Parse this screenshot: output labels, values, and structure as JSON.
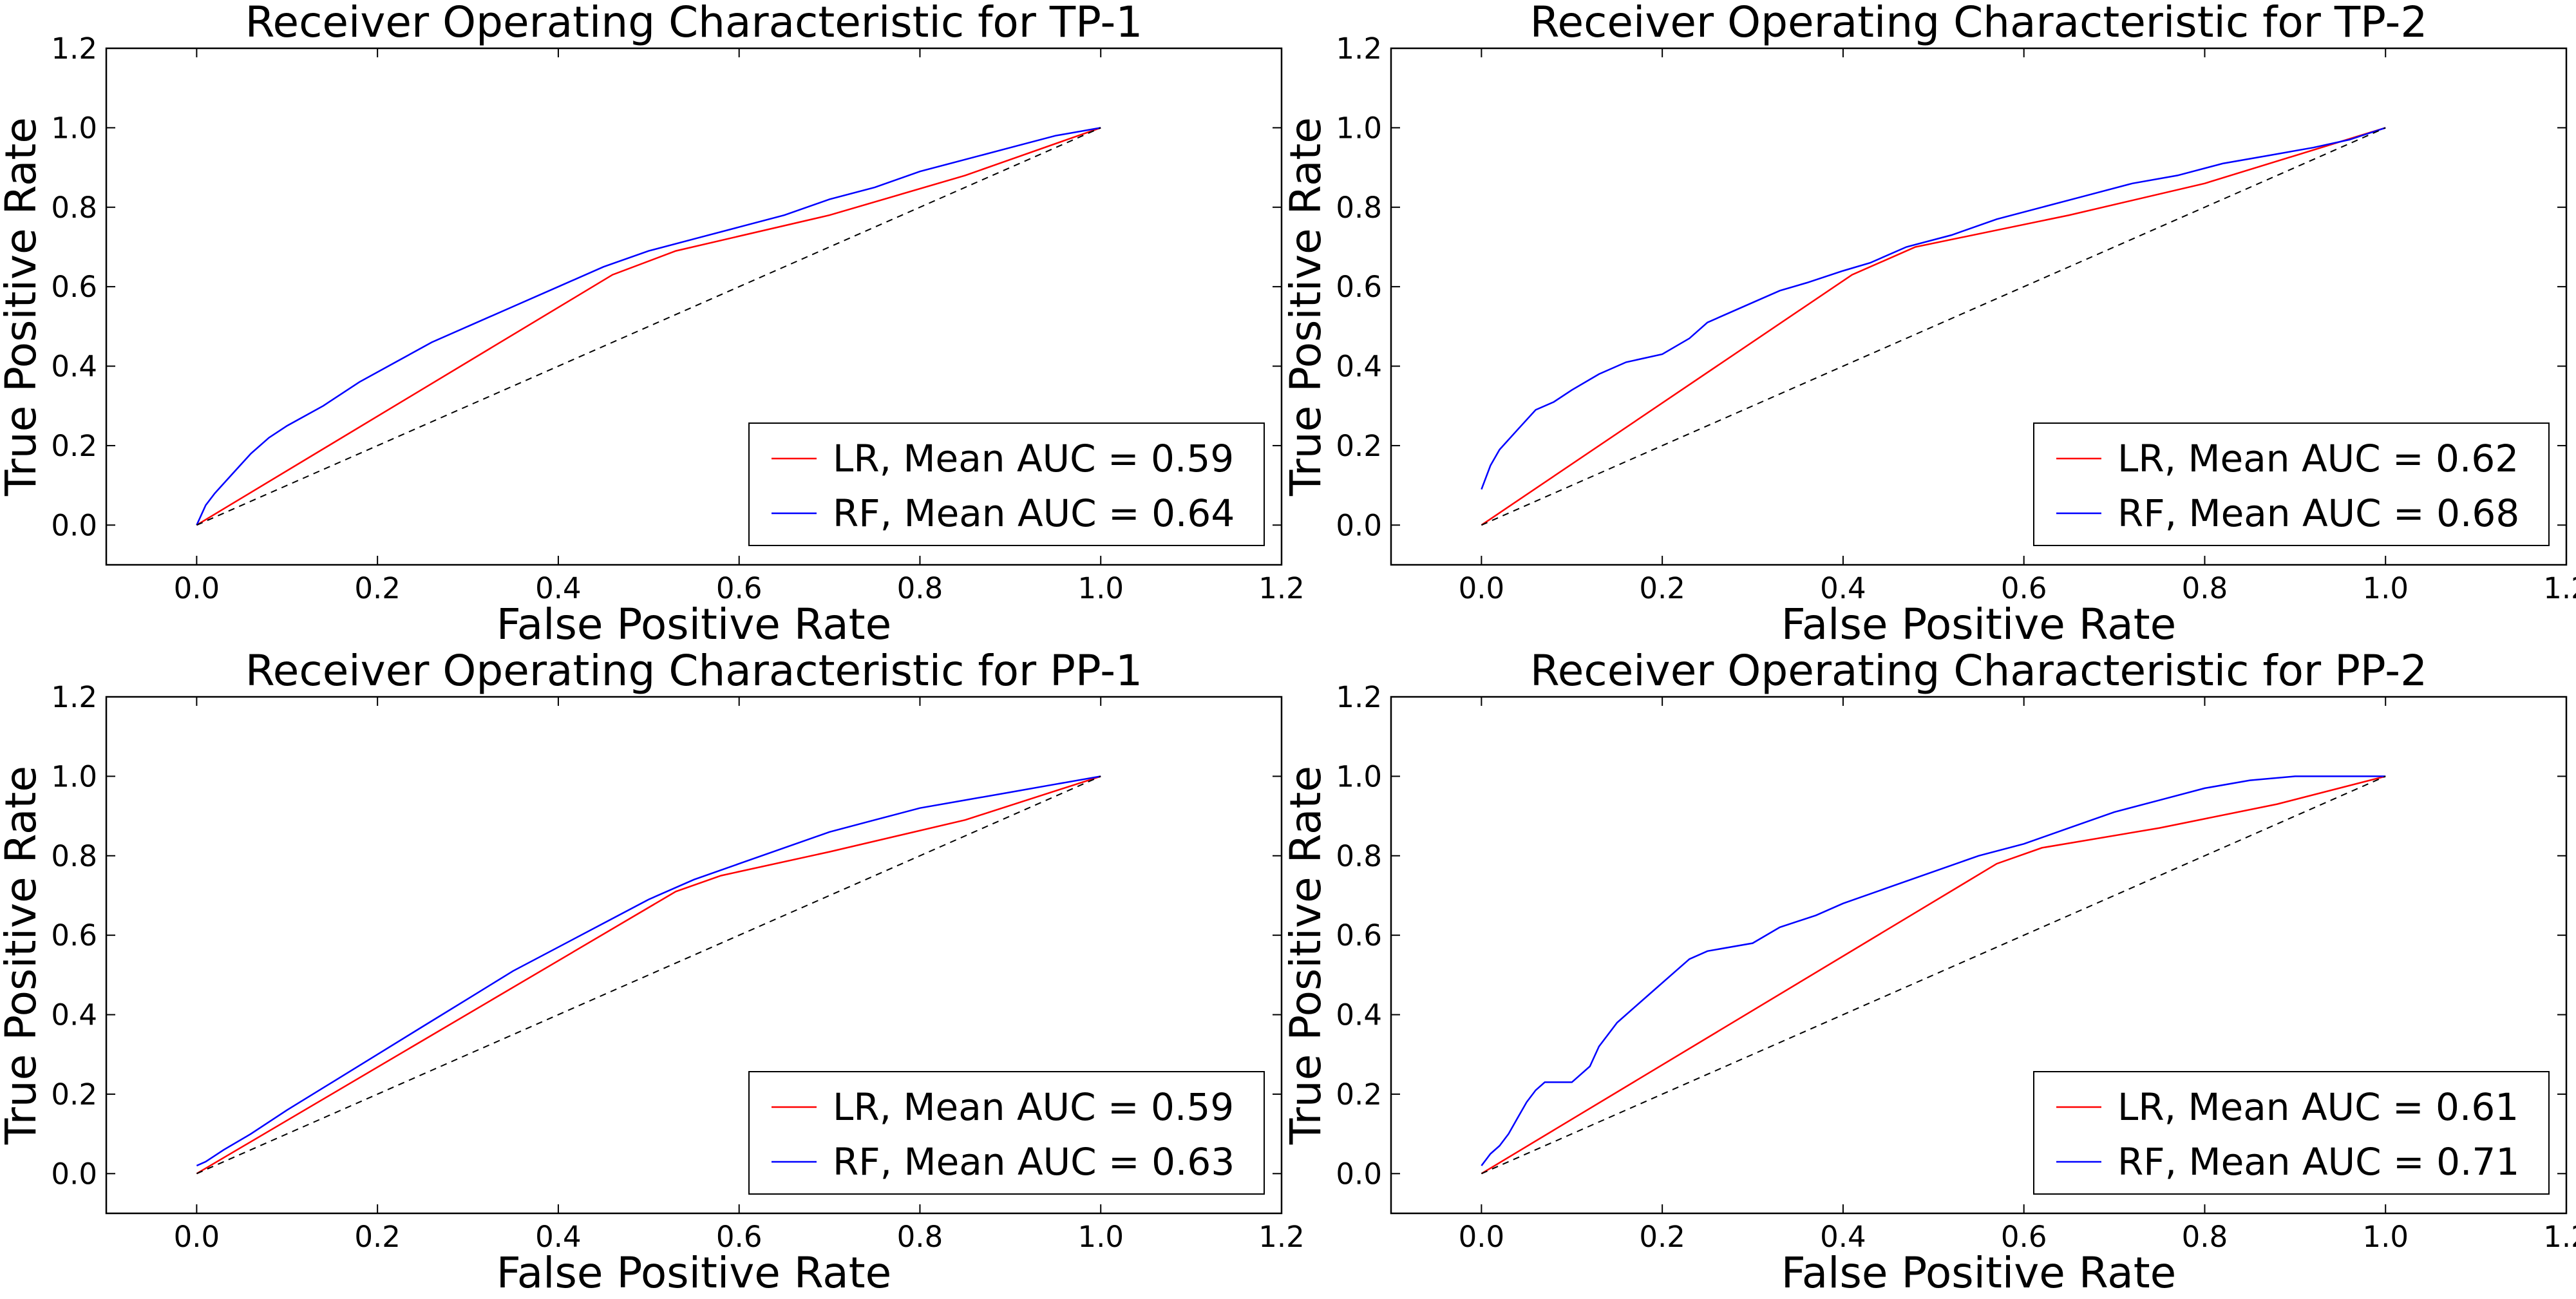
{
  "chart_data": [
    {
      "type": "line",
      "title": "Receiver Operating Characteristic for TP-1",
      "xlabel": "False Positive Rate",
      "ylabel": "True Positive Rate",
      "xlim": [
        -0.1,
        1.2
      ],
      "ylim": [
        -0.1,
        1.2
      ],
      "xticks": [
        "0.0",
        "0.2",
        "0.4",
        "0.6",
        "0.8",
        "1.0",
        "1.2"
      ],
      "yticks": [
        "0.0",
        "0.2",
        "0.4",
        "0.6",
        "0.8",
        "1.0",
        "1.2"
      ],
      "grid": false,
      "legend_position": "lower-right",
      "series": [
        {
          "name": "LR, Mean AUC = 0.59",
          "color": "#ff0000",
          "style": "solid",
          "x": [
            0,
            0.46,
            0.53,
            0.7,
            0.85,
            1.0
          ],
          "y": [
            0,
            0.63,
            0.69,
            0.78,
            0.88,
            1.0
          ]
        },
        {
          "name": "RF, Mean AUC = 0.64",
          "color": "#0000ff",
          "style": "solid",
          "x": [
            0,
            0.01,
            0.02,
            0.04,
            0.06,
            0.08,
            0.1,
            0.14,
            0.18,
            0.22,
            0.26,
            0.3,
            0.35,
            0.4,
            0.45,
            0.5,
            0.55,
            0.6,
            0.65,
            0.7,
            0.75,
            0.8,
            0.85,
            0.9,
            0.95,
            1.0
          ],
          "y": [
            0,
            0.05,
            0.08,
            0.13,
            0.18,
            0.22,
            0.25,
            0.3,
            0.36,
            0.41,
            0.46,
            0.5,
            0.55,
            0.6,
            0.65,
            0.69,
            0.72,
            0.75,
            0.78,
            0.82,
            0.85,
            0.89,
            0.92,
            0.95,
            0.98,
            1.0
          ]
        },
        {
          "name": "",
          "color": "#000000",
          "style": "dashed",
          "x": [
            0,
            1
          ],
          "y": [
            0,
            1
          ]
        }
      ]
    },
    {
      "type": "line",
      "title": "Receiver Operating Characteristic for TP-2",
      "xlabel": "False Positive Rate",
      "ylabel": "True Positive Rate",
      "xlim": [
        -0.1,
        1.2
      ],
      "ylim": [
        -0.1,
        1.2
      ],
      "xticks": [
        "0.0",
        "0.2",
        "0.4",
        "0.6",
        "0.8",
        "1.0",
        "1.2"
      ],
      "yticks": [
        "0.0",
        "0.2",
        "0.4",
        "0.6",
        "0.8",
        "1.0",
        "1.2"
      ],
      "grid": false,
      "legend_position": "lower-right",
      "series": [
        {
          "name": "LR, Mean AUC = 0.62",
          "color": "#ff0000",
          "style": "solid",
          "x": [
            0,
            0.41,
            0.48,
            0.65,
            0.8,
            1.0
          ],
          "y": [
            0,
            0.63,
            0.7,
            0.78,
            0.86,
            1.0
          ]
        },
        {
          "name": "RF, Mean AUC = 0.68",
          "color": "#0000ff",
          "style": "solid",
          "x": [
            0,
            0.01,
            0.02,
            0.04,
            0.06,
            0.08,
            0.1,
            0.13,
            0.16,
            0.2,
            0.23,
            0.25,
            0.27,
            0.3,
            0.33,
            0.36,
            0.4,
            0.43,
            0.47,
            0.52,
            0.57,
            0.62,
            0.67,
            0.72,
            0.77,
            0.82,
            0.87,
            0.92,
            0.96,
            1.0
          ],
          "y": [
            0.09,
            0.15,
            0.19,
            0.24,
            0.29,
            0.31,
            0.34,
            0.38,
            0.41,
            0.43,
            0.47,
            0.51,
            0.53,
            0.56,
            0.59,
            0.61,
            0.64,
            0.66,
            0.7,
            0.73,
            0.77,
            0.8,
            0.83,
            0.86,
            0.88,
            0.91,
            0.93,
            0.95,
            0.97,
            1.0
          ]
        },
        {
          "name": "",
          "color": "#000000",
          "style": "dashed",
          "x": [
            0,
            1
          ],
          "y": [
            0,
            1
          ]
        }
      ]
    },
    {
      "type": "line",
      "title": "Receiver Operating Characteristic for PP-1",
      "xlabel": "False Positive Rate",
      "ylabel": "True Positive Rate",
      "xlim": [
        -0.1,
        1.2
      ],
      "ylim": [
        -0.1,
        1.2
      ],
      "xticks": [
        "0.0",
        "0.2",
        "0.4",
        "0.6",
        "0.8",
        "1.0",
        "1.2"
      ],
      "yticks": [
        "0.0",
        "0.2",
        "0.4",
        "0.6",
        "0.8",
        "1.0",
        "1.2"
      ],
      "grid": false,
      "legend_position": "lower-right",
      "series": [
        {
          "name": "LR, Mean AUC = 0.59",
          "color": "#ff0000",
          "style": "solid",
          "x": [
            0,
            0.53,
            0.58,
            0.7,
            0.85,
            1.0
          ],
          "y": [
            0,
            0.71,
            0.75,
            0.81,
            0.89,
            1.0
          ]
        },
        {
          "name": "RF, Mean AUC = 0.63",
          "color": "#0000ff",
          "style": "solid",
          "x": [
            0,
            0.01,
            0.03,
            0.06,
            0.1,
            0.15,
            0.2,
            0.25,
            0.3,
            0.35,
            0.4,
            0.45,
            0.5,
            0.55,
            0.6,
            0.65,
            0.7,
            0.75,
            0.8,
            0.85,
            0.9,
            0.95,
            1.0
          ],
          "y": [
            0.02,
            0.03,
            0.06,
            0.1,
            0.16,
            0.23,
            0.3,
            0.37,
            0.44,
            0.51,
            0.57,
            0.63,
            0.69,
            0.74,
            0.78,
            0.82,
            0.86,
            0.89,
            0.92,
            0.94,
            0.96,
            0.98,
            1.0
          ]
        },
        {
          "name": "",
          "color": "#000000",
          "style": "dashed",
          "x": [
            0,
            1
          ],
          "y": [
            0,
            1
          ]
        }
      ]
    },
    {
      "type": "line",
      "title": "Receiver Operating Characteristic for PP-2",
      "xlabel": "False Positive Rate",
      "ylabel": "True Positive Rate",
      "xlim": [
        -0.1,
        1.2
      ],
      "ylim": [
        -0.1,
        1.2
      ],
      "xticks": [
        "0.0",
        "0.2",
        "0.4",
        "0.6",
        "0.8",
        "1.0",
        "1.2"
      ],
      "yticks": [
        "0.0",
        "0.2",
        "0.4",
        "0.6",
        "0.8",
        "1.0",
        "1.2"
      ],
      "grid": false,
      "legend_position": "lower-right",
      "series": [
        {
          "name": "LR, Mean AUC = 0.61",
          "color": "#ff0000",
          "style": "solid",
          "x": [
            0,
            0.57,
            0.62,
            0.75,
            0.88,
            1.0
          ],
          "y": [
            0,
            0.78,
            0.82,
            0.87,
            0.93,
            1.0
          ]
        },
        {
          "name": "RF, Mean AUC = 0.71",
          "color": "#0000ff",
          "style": "solid",
          "x": [
            0,
            0.01,
            0.02,
            0.03,
            0.04,
            0.05,
            0.06,
            0.07,
            0.1,
            0.12,
            0.13,
            0.15,
            0.17,
            0.19,
            0.21,
            0.23,
            0.25,
            0.3,
            0.33,
            0.37,
            0.4,
            0.45,
            0.5,
            0.55,
            0.6,
            0.65,
            0.7,
            0.75,
            0.8,
            0.85,
            0.9,
            0.95,
            1.0
          ],
          "y": [
            0.02,
            0.05,
            0.07,
            0.1,
            0.14,
            0.18,
            0.21,
            0.23,
            0.23,
            0.27,
            0.32,
            0.38,
            0.42,
            0.46,
            0.5,
            0.54,
            0.56,
            0.58,
            0.62,
            0.65,
            0.68,
            0.72,
            0.76,
            0.8,
            0.83,
            0.87,
            0.91,
            0.94,
            0.97,
            0.99,
            1.0,
            1.0,
            1.0
          ]
        },
        {
          "name": "",
          "color": "#000000",
          "style": "dashed",
          "x": [
            0,
            1
          ],
          "y": [
            0,
            1
          ]
        }
      ]
    }
  ]
}
